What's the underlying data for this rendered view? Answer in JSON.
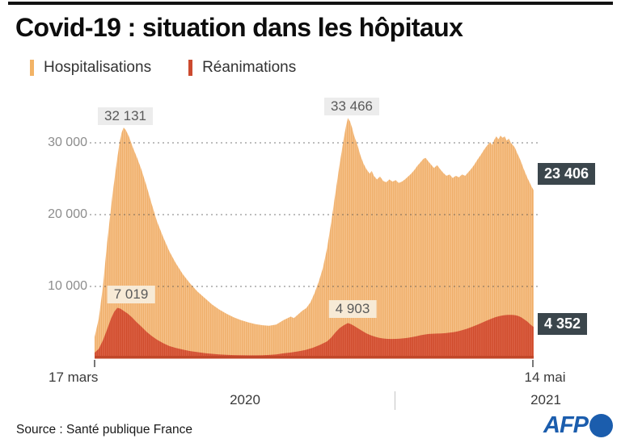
{
  "header": {
    "title": "Covid-19 : situation dans les hôpitaux"
  },
  "legend": {
    "items": [
      {
        "label": "Hospitalisations",
        "color": "#f2b366"
      },
      {
        "label": "Réanimations",
        "color": "#cc4a2f"
      }
    ]
  },
  "chart_data": {
    "type": "area",
    "title": "Covid-19 : situation dans les hôpitaux",
    "x_start_label": "17 mars",
    "x_end_label": "14 mai",
    "year_labels": [
      "2020",
      "2021"
    ],
    "x_unit": "days since 17 mars 2020 (end = 14 mai 2021, day 423)",
    "ylim": [
      0,
      33466
    ],
    "y_ticks": [
      "30 000",
      "20 000",
      "10 000"
    ],
    "y_tick_values": [
      30000,
      20000,
      10000
    ],
    "grid": "dotted horizontal gridlines",
    "legend_position": "top-left",
    "series": [
      {
        "name": "Hospitalisations",
        "fill_colors": [
          "#eca04f",
          "#f4b978"
        ],
        "peak_annotations": [
          {
            "label": "32 131",
            "value": 32131,
            "day": 28
          },
          {
            "label": "33 466",
            "value": 33466,
            "day": 244
          }
        ],
        "end_annotation": {
          "label": "23 406",
          "value": 23406,
          "day": 423
        },
        "points": [
          [
            0,
            2970
          ],
          [
            4,
            5500
          ],
          [
            8,
            10000
          ],
          [
            12,
            16000
          ],
          [
            17,
            22500
          ],
          [
            21,
            27000
          ],
          [
            24,
            30000
          ],
          [
            26,
            31400
          ],
          [
            28,
            32131
          ],
          [
            30,
            31800
          ],
          [
            33,
            30900
          ],
          [
            37,
            29300
          ],
          [
            41,
            27900
          ],
          [
            45,
            26300
          ],
          [
            50,
            24000
          ],
          [
            55,
            21500
          ],
          [
            60,
            19100
          ],
          [
            66,
            16900
          ],
          [
            72,
            14900
          ],
          [
            78,
            13300
          ],
          [
            85,
            11700
          ],
          [
            92,
            10400
          ],
          [
            99,
            9300
          ],
          [
            106,
            8400
          ],
          [
            113,
            7500
          ],
          [
            120,
            6800
          ],
          [
            127,
            6200
          ],
          [
            134,
            5700
          ],
          [
            141,
            5300
          ],
          [
            148,
            5000
          ],
          [
            155,
            4750
          ],
          [
            162,
            4600
          ],
          [
            168,
            4530
          ],
          [
            175,
            4700
          ],
          [
            182,
            5300
          ],
          [
            189,
            5800
          ],
          [
            192,
            5600
          ],
          [
            196,
            6100
          ],
          [
            200,
            6600
          ],
          [
            204,
            7000
          ],
          [
            208,
            7800
          ],
          [
            212,
            9100
          ],
          [
            216,
            10700
          ],
          [
            220,
            12600
          ],
          [
            224,
            15300
          ],
          [
            228,
            19000
          ],
          [
            232,
            23000
          ],
          [
            236,
            27000
          ],
          [
            240,
            30600
          ],
          [
            242,
            32200
          ],
          [
            244,
            33466
          ],
          [
            246,
            33000
          ],
          [
            248,
            32100
          ],
          [
            250,
            31000
          ],
          [
            253,
            29800
          ],
          [
            256,
            28300
          ],
          [
            259,
            27100
          ],
          [
            262,
            26300
          ],
          [
            265,
            25700
          ],
          [
            267,
            26100
          ],
          [
            269,
            25400
          ],
          [
            272,
            24900
          ],
          [
            275,
            25300
          ],
          [
            278,
            24700
          ],
          [
            281,
            24500
          ],
          [
            284,
            24900
          ],
          [
            287,
            24600
          ],
          [
            290,
            24800
          ],
          [
            293,
            24400
          ],
          [
            296,
            24600
          ],
          [
            299,
            24900
          ],
          [
            302,
            25300
          ],
          [
            305,
            25700
          ],
          [
            308,
            26200
          ],
          [
            311,
            26800
          ],
          [
            314,
            27300
          ],
          [
            317,
            27800
          ],
          [
            319,
            27900
          ],
          [
            321,
            27500
          ],
          [
            324,
            27000
          ],
          [
            327,
            26500
          ],
          [
            330,
            26900
          ],
          [
            333,
            26300
          ],
          [
            336,
            25800
          ],
          [
            339,
            25400
          ],
          [
            342,
            25600
          ],
          [
            345,
            25100
          ],
          [
            348,
            25400
          ],
          [
            351,
            25200
          ],
          [
            354,
            25600
          ],
          [
            357,
            25400
          ],
          [
            360,
            25900
          ],
          [
            363,
            26400
          ],
          [
            366,
            27000
          ],
          [
            369,
            27700
          ],
          [
            372,
            28300
          ],
          [
            375,
            29000
          ],
          [
            378,
            29600
          ],
          [
            381,
            30100
          ],
          [
            383,
            29700
          ],
          [
            385,
            30400
          ],
          [
            387,
            30900
          ],
          [
            389,
            30500
          ],
          [
            391,
            31000
          ],
          [
            393,
            30700
          ],
          [
            395,
            30900
          ],
          [
            397,
            30300
          ],
          [
            399,
            30600
          ],
          [
            401,
            30000
          ],
          [
            403,
            29700
          ],
          [
            405,
            29300
          ],
          [
            407,
            28600
          ],
          [
            409,
            28000
          ],
          [
            411,
            27300
          ],
          [
            413,
            26500
          ],
          [
            415,
            25800
          ],
          [
            417,
            25100
          ],
          [
            419,
            24500
          ],
          [
            421,
            23900
          ],
          [
            423,
            23406
          ]
        ]
      },
      {
        "name": "Réanimations",
        "fill_colors": [
          "#ce4729",
          "#da5c41"
        ],
        "peak_annotations": [
          {
            "label": "7 019",
            "value": 7019,
            "day": 22
          },
          {
            "label": "4 903",
            "value": 4903,
            "day": 244
          }
        ],
        "end_annotation": {
          "label": "4 352",
          "value": 4352,
          "day": 423
        },
        "points": [
          [
            0,
            770
          ],
          [
            4,
            1300
          ],
          [
            8,
            2500
          ],
          [
            12,
            4000
          ],
          [
            16,
            5600
          ],
          [
            19,
            6500
          ],
          [
            22,
            7019
          ],
          [
            25,
            6900
          ],
          [
            28,
            6600
          ],
          [
            32,
            6200
          ],
          [
            36,
            5700
          ],
          [
            40,
            5100
          ],
          [
            45,
            4400
          ],
          [
            50,
            3700
          ],
          [
            55,
            3100
          ],
          [
            60,
            2600
          ],
          [
            66,
            2100
          ],
          [
            72,
            1700
          ],
          [
            78,
            1450
          ],
          [
            85,
            1200
          ],
          [
            92,
            1000
          ],
          [
            99,
            850
          ],
          [
            106,
            720
          ],
          [
            113,
            620
          ],
          [
            120,
            540
          ],
          [
            127,
            480
          ],
          [
            134,
            440
          ],
          [
            141,
            420
          ],
          [
            148,
            400
          ],
          [
            155,
            400
          ],
          [
            162,
            420
          ],
          [
            168,
            460
          ],
          [
            175,
            540
          ],
          [
            182,
            680
          ],
          [
            189,
            800
          ],
          [
            196,
            950
          ],
          [
            203,
            1150
          ],
          [
            210,
            1450
          ],
          [
            217,
            1850
          ],
          [
            224,
            2350
          ],
          [
            228,
            2900
          ],
          [
            232,
            3600
          ],
          [
            236,
            4200
          ],
          [
            240,
            4600
          ],
          [
            244,
            4903
          ],
          [
            247,
            4750
          ],
          [
            250,
            4500
          ],
          [
            254,
            4150
          ],
          [
            258,
            3800
          ],
          [
            262,
            3450
          ],
          [
            266,
            3200
          ],
          [
            270,
            3000
          ],
          [
            274,
            2850
          ],
          [
            278,
            2750
          ],
          [
            282,
            2700
          ],
          [
            286,
            2680
          ],
          [
            290,
            2700
          ],
          [
            294,
            2730
          ],
          [
            298,
            2780
          ],
          [
            302,
            2850
          ],
          [
            306,
            2950
          ],
          [
            310,
            3070
          ],
          [
            314,
            3200
          ],
          [
            318,
            3300
          ],
          [
            322,
            3380
          ],
          [
            326,
            3420
          ],
          [
            330,
            3440
          ],
          [
            334,
            3460
          ],
          [
            338,
            3500
          ],
          [
            342,
            3560
          ],
          [
            346,
            3640
          ],
          [
            350,
            3750
          ],
          [
            354,
            3900
          ],
          [
            358,
            4080
          ],
          [
            362,
            4280
          ],
          [
            366,
            4500
          ],
          [
            370,
            4750
          ],
          [
            374,
            5000
          ],
          [
            378,
            5250
          ],
          [
            382,
            5500
          ],
          [
            386,
            5720
          ],
          [
            390,
            5880
          ],
          [
            394,
            5980
          ],
          [
            398,
            6030
          ],
          [
            402,
            6050
          ],
          [
            405,
            6000
          ],
          [
            408,
            5900
          ],
          [
            411,
            5700
          ],
          [
            414,
            5400
          ],
          [
            417,
            5100
          ],
          [
            420,
            4700
          ],
          [
            423,
            4352
          ]
        ]
      }
    ]
  },
  "footer": {
    "source": "Source : Santé publique France",
    "logo": "AFP"
  }
}
